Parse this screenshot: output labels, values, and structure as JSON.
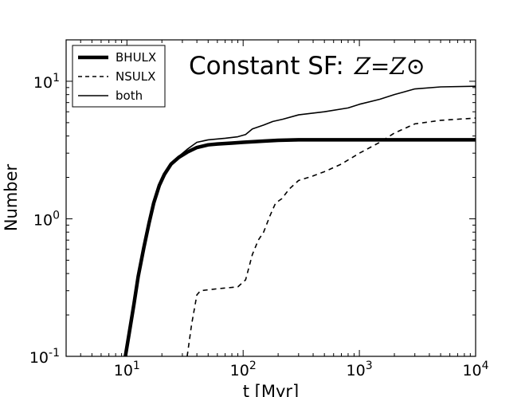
{
  "chart_data": {
    "type": "line",
    "title": {
      "text": "Constant SF:",
      "math": "Z=Z⊙"
    },
    "xlabel": "t [Myr]",
    "ylabel": "Number",
    "x_scale": "log",
    "y_scale": "log",
    "xlim": [
      3,
      10000
    ],
    "ylim": [
      0.1,
      20
    ],
    "x_ticks": [
      {
        "value": 10,
        "base": "10",
        "exp": "1"
      },
      {
        "value": 100,
        "base": "10",
        "exp": "2"
      },
      {
        "value": 1000,
        "base": "10",
        "exp": "3"
      },
      {
        "value": 10000,
        "base": "10",
        "exp": "4"
      }
    ],
    "y_ticks": [
      {
        "value": 0.1,
        "base": "10",
        "exp": "-1"
      },
      {
        "value": 1,
        "base": "10",
        "exp": "0"
      },
      {
        "value": 10,
        "base": "10",
        "exp": "1"
      }
    ],
    "legend_position": "top-left",
    "grid": false,
    "series": [
      {
        "name": "BHULX",
        "style": "thick-solid",
        "points": [
          [
            9.7,
            0.1
          ],
          [
            10.5,
            0.15
          ],
          [
            11.5,
            0.24
          ],
          [
            12.5,
            0.38
          ],
          [
            14,
            0.62
          ],
          [
            15.5,
            0.93
          ],
          [
            17,
            1.3
          ],
          [
            19,
            1.75
          ],
          [
            21,
            2.1
          ],
          [
            24,
            2.5
          ],
          [
            28,
            2.8
          ],
          [
            33,
            3.05
          ],
          [
            40,
            3.3
          ],
          [
            50,
            3.45
          ],
          [
            60,
            3.5
          ],
          [
            80,
            3.55
          ],
          [
            100,
            3.6
          ],
          [
            150,
            3.67
          ],
          [
            200,
            3.72
          ],
          [
            300,
            3.75
          ],
          [
            500,
            3.75
          ],
          [
            1000,
            3.75
          ],
          [
            3000,
            3.75
          ],
          [
            10000,
            3.75
          ]
        ]
      },
      {
        "name": "NSULX",
        "style": "dashed",
        "points": [
          [
            33,
            0.1
          ],
          [
            36,
            0.17
          ],
          [
            40,
            0.28
          ],
          [
            43,
            0.3
          ],
          [
            60,
            0.31
          ],
          [
            90,
            0.32
          ],
          [
            105,
            0.36
          ],
          [
            120,
            0.55
          ],
          [
            135,
            0.7
          ],
          [
            150,
            0.8
          ],
          [
            170,
            1.05
          ],
          [
            190,
            1.3
          ],
          [
            215,
            1.4
          ],
          [
            250,
            1.65
          ],
          [
            300,
            1.9
          ],
          [
            400,
            2.05
          ],
          [
            500,
            2.2
          ],
          [
            700,
            2.5
          ],
          [
            1000,
            3.0
          ],
          [
            1500,
            3.6
          ],
          [
            2000,
            4.2
          ],
          [
            3000,
            4.9
          ],
          [
            5000,
            5.2
          ],
          [
            10000,
            5.4
          ]
        ]
      },
      {
        "name": "both",
        "style": "thin-solid",
        "points": [
          [
            9.7,
            0.1
          ],
          [
            10.5,
            0.15
          ],
          [
            11.5,
            0.24
          ],
          [
            12.5,
            0.38
          ],
          [
            14,
            0.62
          ],
          [
            15.5,
            0.93
          ],
          [
            17,
            1.3
          ],
          [
            19,
            1.75
          ],
          [
            21,
            2.1
          ],
          [
            24,
            2.5
          ],
          [
            28,
            2.85
          ],
          [
            33,
            3.2
          ],
          [
            40,
            3.6
          ],
          [
            50,
            3.75
          ],
          [
            70,
            3.85
          ],
          [
            90,
            3.95
          ],
          [
            105,
            4.1
          ],
          [
            120,
            4.5
          ],
          [
            150,
            4.8
          ],
          [
            180,
            5.1
          ],
          [
            220,
            5.3
          ],
          [
            300,
            5.7
          ],
          [
            500,
            6.0
          ],
          [
            800,
            6.4
          ],
          [
            1000,
            6.8
          ],
          [
            1500,
            7.4
          ],
          [
            2000,
            8.0
          ],
          [
            3000,
            8.8
          ],
          [
            5000,
            9.1
          ],
          [
            10000,
            9.2
          ]
        ]
      }
    ]
  }
}
